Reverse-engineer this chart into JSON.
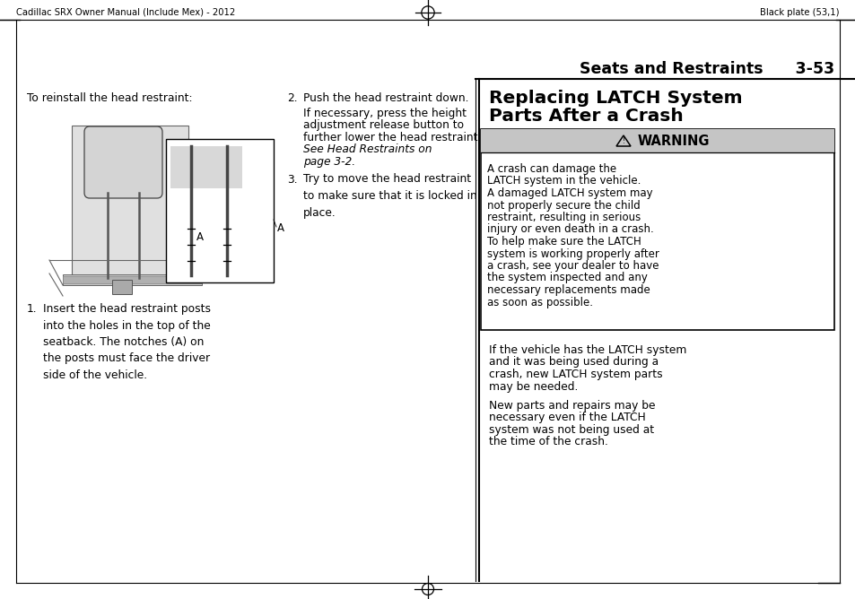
{
  "bg_color": "#ffffff",
  "header_left": "Cadillac SRX Owner Manual (Include Mex) - 2012",
  "header_right": "Black plate (53,1)",
  "section_title": "Seats and Restraints",
  "page_number": "3-53",
  "left_intro": "To reinstall the head restraint:",
  "step1_text": "Insert the head restraint posts\ninto the holes in the top of the\nseatback. The notches (A) on\nthe posts must face the driver\nside of the vehicle.",
  "step2_text": "Push the head restraint down.",
  "step2_sub_normal1": "If necessary, press the height",
  "step2_sub_normal2": "adjustment release button to",
  "step2_sub_normal3": "further lower the head restraint.",
  "step2_sub_italic1": "See Head Restraints on",
  "step2_sub_italic2": "page 3-2.",
  "step3_text": "Try to move the head restraint\nto make sure that it is locked in\nplace.",
  "right_section_title_line1": "Replacing LATCH System",
  "right_section_title_line2": "Parts After a Crash",
  "warning_text_lines": [
    "A crash can damage the",
    "LATCH system in the vehicle.",
    "A damaged LATCH system may",
    "not properly secure the child",
    "restraint, resulting in serious",
    "injury or even death in a crash.",
    "To help make sure the LATCH",
    "system is working properly after",
    "a crash, see your dealer to have",
    "the system inspected and any",
    "necessary replacements made",
    "as soon as possible."
  ],
  "para1_lines": [
    "If the vehicle has the LATCH system",
    "and it was being used during a",
    "crash, new LATCH system parts",
    "may be needed."
  ],
  "para2_lines": [
    "New parts and repairs may be",
    "necessary even if the LATCH",
    "system was not being used at",
    "the time of the crash."
  ]
}
